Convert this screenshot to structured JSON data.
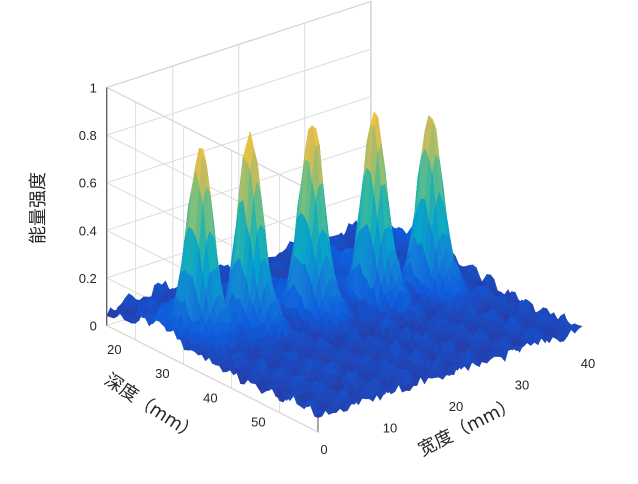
{
  "chart_data": {
    "type": "surface",
    "z_label": "能量强度",
    "y_label": "深度（mm）",
    "x_label": "宽度（mm）",
    "z_ticks": [
      "0",
      "0.2",
      "0.4",
      "0.6",
      "0.8",
      "1"
    ],
    "y_ticks": [
      "20",
      "30",
      "40",
      "50"
    ],
    "x_ticks": [
      "0",
      "10",
      "20",
      "30",
      "40"
    ],
    "z_range": [
      0,
      1
    ],
    "y_range": [
      14,
      58
    ],
    "x_range": [
      0,
      40
    ],
    "grid": true,
    "colormap": "parula",
    "colors": [
      "#352a87",
      "#0f5cdd",
      "#1481d6",
      "#06a4ca",
      "#2eb7a4",
      "#87bf77",
      "#d1bb59",
      "#fec832",
      "#f9fb0e"
    ],
    "peaks": [
      {
        "width_mm": 4,
        "depth_mm": 28,
        "intensity": 0.82
      },
      {
        "width_mm": 10,
        "depth_mm": 30,
        "intensity": 0.85
      },
      {
        "width_mm": 18,
        "depth_mm": 32,
        "intensity": 0.87
      },
      {
        "width_mm": 26,
        "depth_mm": 34,
        "intensity": 0.84
      },
      {
        "width_mm": 33,
        "depth_mm": 36,
        "intensity": 0.8
      }
    ]
  }
}
